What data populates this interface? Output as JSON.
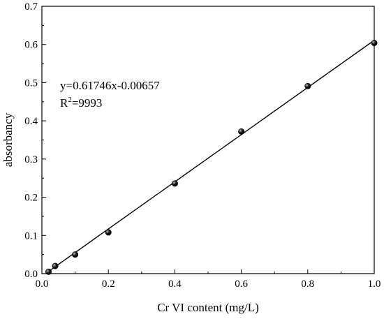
{
  "chart_data": {
    "type": "scatter",
    "xlabel": "Cr VI content (mg/L)",
    "ylabel": "absorbancy",
    "xlim": [
      0.0,
      1.0
    ],
    "ylim": [
      0.0,
      0.7
    ],
    "x_ticks": [
      0.0,
      0.2,
      0.4,
      0.6,
      0.8,
      1.0
    ],
    "y_ticks": [
      0.0,
      0.1,
      0.2,
      0.3,
      0.4,
      0.5,
      0.6,
      0.7
    ],
    "x_tick_labels": [
      "0.0",
      "0.2",
      "0.4",
      "0.6",
      "0.8",
      "1.0"
    ],
    "y_tick_labels": [
      "0.0",
      "0.1",
      "0.2",
      "0.3",
      "0.4",
      "0.5",
      "0.6",
      "0.7"
    ],
    "series": [
      {
        "x": [
          0.02,
          0.04,
          0.1,
          0.2,
          0.4,
          0.6,
          0.8,
          1.0
        ],
        "y": [
          0.005,
          0.02,
          0.05,
          0.108,
          0.236,
          0.372,
          0.491,
          0.604
        ]
      }
    ],
    "fit": {
      "slope": 0.61746,
      "intercept": -0.00657,
      "x_range": [
        0.01,
        1.0
      ]
    },
    "annotations": {
      "equation": "y=0.61746x-0.00657",
      "r2_prefix": "R",
      "r2_sup": "2",
      "r2_value": "=9993"
    },
    "grid": false,
    "colors": {
      "marker": "#111111",
      "line": "#000000"
    }
  }
}
